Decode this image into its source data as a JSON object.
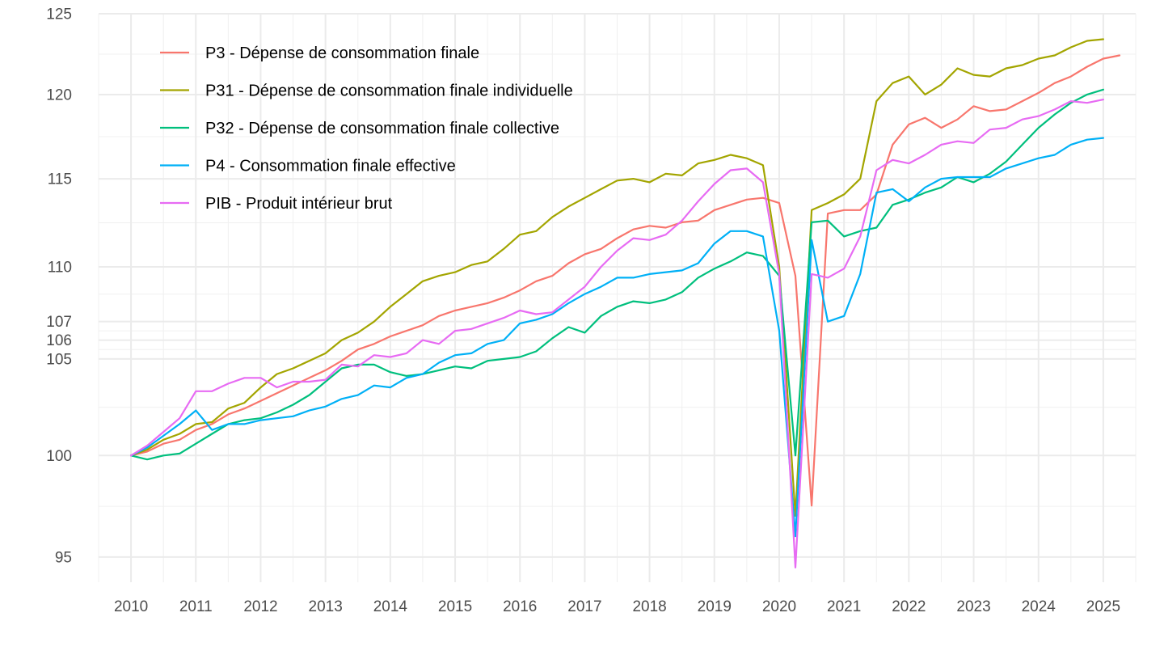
{
  "chart_data": {
    "type": "line",
    "title": "",
    "xlabel": "",
    "ylabel": "",
    "y_scale": "log",
    "xlim": [
      2009.5,
      2025.5
    ],
    "ylim": [
      93.8,
      125
    ],
    "x_ticks": [
      2010,
      2011,
      2012,
      2013,
      2014,
      2015,
      2016,
      2017,
      2018,
      2019,
      2020,
      2021,
      2022,
      2023,
      2024,
      2025
    ],
    "x_tick_labels": [
      "2010",
      "2011",
      "2012",
      "2013",
      "2014",
      "2015",
      "2016",
      "2017",
      "2018",
      "2019",
      "2020",
      "2021",
      "2022",
      "2023",
      "2024",
      "2025"
    ],
    "y_ticks": [
      95,
      100,
      105,
      106,
      107,
      110,
      115,
      120,
      125
    ],
    "y_tick_labels": [
      "95",
      "100",
      "105",
      "106",
      "107",
      "110",
      "115",
      "120",
      "125"
    ],
    "grid": true,
    "legend_position": "top-left",
    "x_start": 2010,
    "x_step": 0.25,
    "series": [
      {
        "name": "P3 - Dépense de consommation finale",
        "color": "#F8766D",
        "values": [
          100,
          100.2,
          100.6,
          100.8,
          101.3,
          101.6,
          102.1,
          102.4,
          102.8,
          103.2,
          103.6,
          104.0,
          104.4,
          104.9,
          105.5,
          105.8,
          106.2,
          106.5,
          106.8,
          107.3,
          107.6,
          107.8,
          108.0,
          108.3,
          108.7,
          109.2,
          109.5,
          110.2,
          110.7,
          111.0,
          111.6,
          112.1,
          112.3,
          112.2,
          112.5,
          112.6,
          113.2,
          113.5,
          113.8,
          113.9,
          113.6,
          109.5,
          97.5,
          113.0,
          113.2,
          113.2,
          114.1,
          117.0,
          118.2,
          118.6,
          118.0,
          118.5,
          119.3,
          119.0,
          119.1,
          119.6,
          120.1,
          120.7,
          121.1,
          121.7,
          122.2,
          122.4
        ]
      },
      {
        "name": "P31 - Dépense de consommation finale individuelle",
        "color": "#A3A500",
        "values": [
          100,
          100.3,
          100.8,
          101.1,
          101.6,
          101.7,
          102.4,
          102.7,
          103.5,
          104.2,
          104.5,
          104.9,
          105.3,
          106.0,
          106.4,
          107.0,
          107.8,
          108.5,
          109.2,
          109.5,
          109.7,
          110.1,
          110.3,
          111.0,
          111.8,
          112.0,
          112.8,
          113.4,
          113.9,
          114.4,
          114.9,
          115.0,
          114.8,
          115.3,
          115.2,
          115.9,
          116.1,
          116.4,
          116.2,
          115.8,
          110.0,
          97.0,
          113.2,
          113.6,
          114.1,
          115.0,
          119.6,
          120.7,
          121.1,
          120.0,
          120.6,
          121.6,
          121.2,
          121.1,
          121.6,
          121.8,
          122.2,
          122.4,
          122.9,
          123.3,
          123.4
        ]
      },
      {
        "name": "P32 - Dépense de consommation finale collective",
        "color": "#00BF7D",
        "values": [
          100,
          99.8,
          100.0,
          100.1,
          100.6,
          101.1,
          101.6,
          101.8,
          101.9,
          102.2,
          102.6,
          103.1,
          103.8,
          104.5,
          104.7,
          104.7,
          104.3,
          104.1,
          104.2,
          104.4,
          104.6,
          104.5,
          104.9,
          105.0,
          105.1,
          105.4,
          106.1,
          106.7,
          106.4,
          107.3,
          107.8,
          108.1,
          108.0,
          108.2,
          108.6,
          109.4,
          109.9,
          110.3,
          110.8,
          110.6,
          109.5,
          100.0,
          112.5,
          112.6,
          111.7,
          112.0,
          112.2,
          113.5,
          113.8,
          114.2,
          114.5,
          115.1,
          114.8,
          115.3,
          116.0,
          117.0,
          118.0,
          118.8,
          119.5,
          120.0,
          120.3
        ]
      },
      {
        "name": "P4 - Consommation finale effective",
        "color": "#00B0F6",
        "values": [
          100,
          100.4,
          101.0,
          101.6,
          102.3,
          101.3,
          101.6,
          101.6,
          101.8,
          101.9,
          102.0,
          102.3,
          102.5,
          102.9,
          103.1,
          103.6,
          103.5,
          104.0,
          104.2,
          104.8,
          105.2,
          105.3,
          105.8,
          106.0,
          106.9,
          107.1,
          107.4,
          108.0,
          108.5,
          108.9,
          109.4,
          109.4,
          109.6,
          109.7,
          109.8,
          110.2,
          111.3,
          112.0,
          112.0,
          111.7,
          106.5,
          96.0,
          111.5,
          107.0,
          107.3,
          109.6,
          114.2,
          114.4,
          113.7,
          114.5,
          115.0,
          115.1,
          115.1,
          115.1,
          115.6,
          115.9,
          116.2,
          116.4,
          117.0,
          117.3,
          117.4
        ]
      },
      {
        "name": "PIB - Produit intérieur brut",
        "color": "#E76BF3",
        "values": [
          100,
          100.5,
          101.2,
          101.9,
          103.3,
          103.3,
          103.7,
          104.0,
          104.0,
          103.5,
          103.8,
          103.8,
          103.9,
          104.7,
          104.6,
          105.2,
          105.1,
          105.3,
          106.0,
          105.8,
          106.5,
          106.6,
          106.9,
          107.2,
          107.6,
          107.4,
          107.5,
          108.2,
          108.9,
          110.0,
          110.9,
          111.6,
          111.5,
          111.8,
          112.6,
          113.7,
          114.7,
          115.5,
          115.6,
          114.8,
          109.6,
          94.5,
          109.6,
          109.4,
          109.9,
          111.7,
          115.5,
          116.1,
          115.9,
          116.4,
          117.0,
          117.2,
          117.1,
          117.9,
          118.0,
          118.5,
          118.7,
          119.1,
          119.6,
          119.5,
          119.7
        ]
      }
    ]
  }
}
